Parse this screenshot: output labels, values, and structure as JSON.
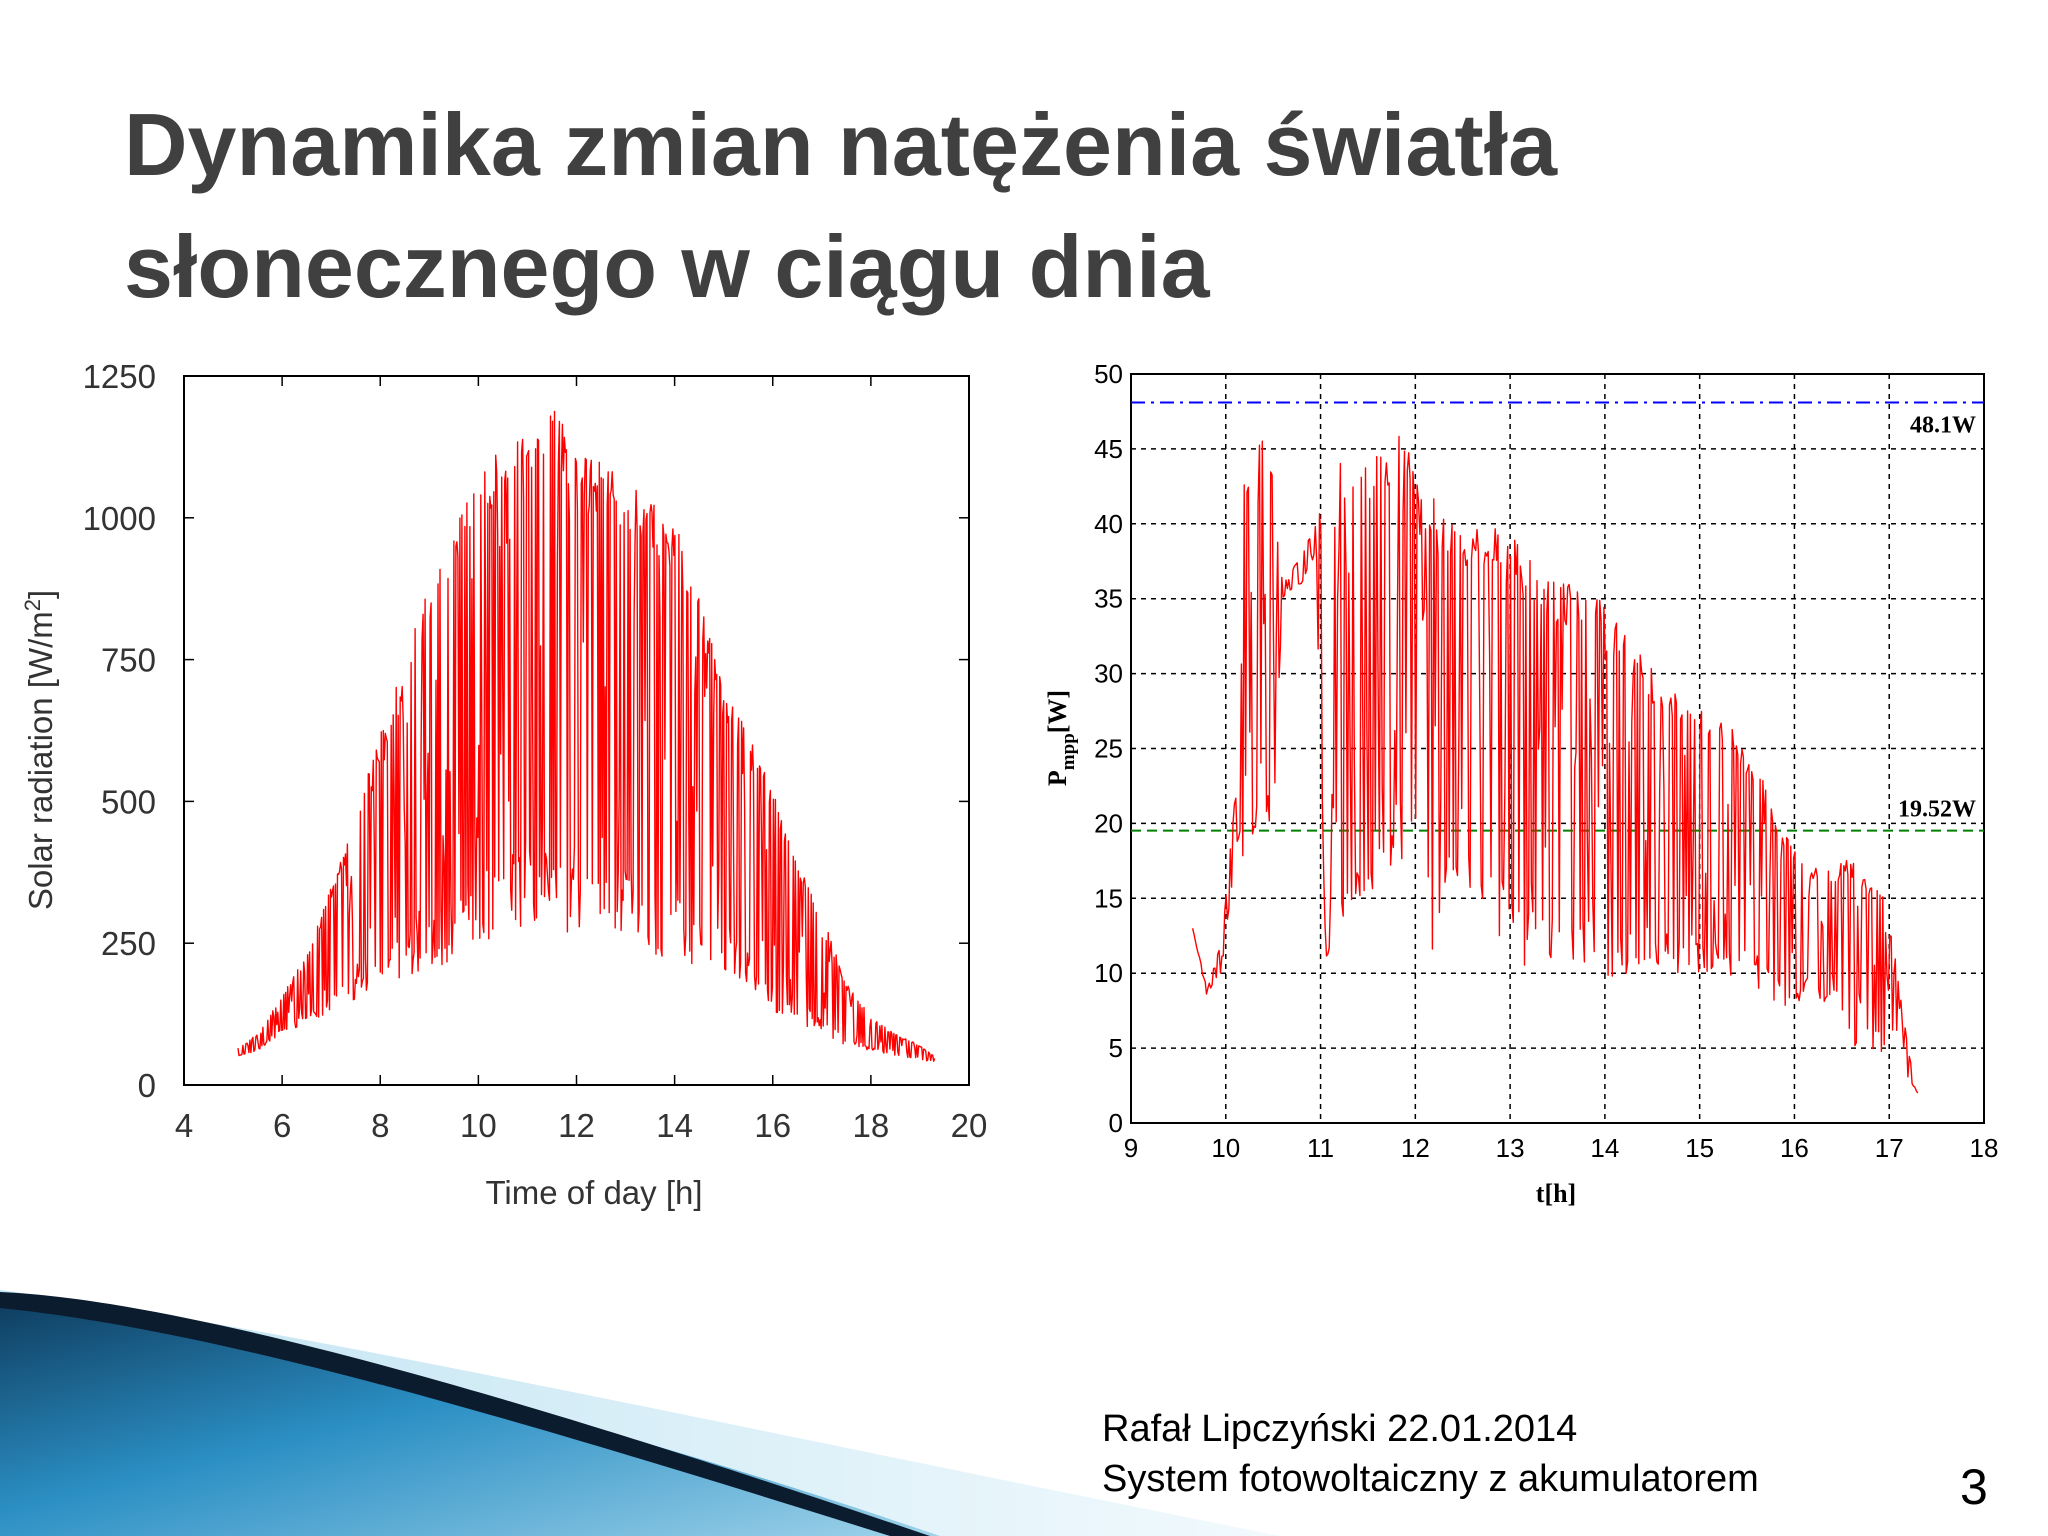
{
  "slide": {
    "title_line1": "Dynamika zmian natężenia światła",
    "title_line2": "słonecznego w ciągu dnia",
    "footer_line1": "Rafał Lipczyński 22.01.2014",
    "footer_line2": "System fotowoltaiczny z akumulatorem",
    "page_number": "3"
  },
  "colors": {
    "title": "#404040",
    "series": "#ff0000",
    "max_line": "#0000ff",
    "avg_line": "#008000",
    "swoosh_dark": "#0b1c2e",
    "swoosh_blue": "#2b8fc4"
  },
  "chart_data": [
    {
      "type": "line",
      "xlabel": "Time of day [h]",
      "ylabel_prefix": "Solar radiation [W/m",
      "ylabel_sup": "2",
      "ylabel_suffix": "]",
      "xlim": [
        4,
        20
      ],
      "ylim": [
        0,
        1250
      ],
      "xticks": [
        4,
        6,
        8,
        10,
        12,
        14,
        16,
        18,
        20
      ],
      "yticks": [
        0,
        250,
        500,
        750,
        1000,
        1250
      ],
      "grid": false,
      "series": [
        {
          "x": [
            5.1,
            5.5,
            6.0,
            6.5,
            7.0,
            7.5,
            8.0,
            8.5,
            9.0,
            9.5,
            10.0,
            10.5,
            11.0,
            11.5,
            12.0,
            12.5,
            13.0,
            13.5,
            14.0,
            14.5,
            15.0,
            15.5,
            16.0,
            16.5,
            17.0,
            17.5,
            18.0,
            18.5,
            19.0,
            19.3
          ],
          "upper": [
            65,
            90,
            160,
            230,
            350,
            480,
            620,
            750,
            880,
            980,
            1080,
            1150,
            1180,
            1200,
            1150,
            1100,
            1080,
            1030,
            1000,
            860,
            700,
            620,
            520,
            400,
            300,
            180,
            120,
            90,
            70,
            50
          ],
          "lower": [
            50,
            60,
            90,
            110,
            130,
            150,
            170,
            190,
            200,
            220,
            250,
            260,
            270,
            280,
            260,
            280,
            270,
            230,
            220,
            210,
            200,
            180,
            130,
            110,
            90,
            70,
            60,
            50,
            45,
            40
          ]
        }
      ]
    },
    {
      "type": "line",
      "xlabel": "t[h]",
      "ylabel_main": "P",
      "ylabel_sub": "mpp",
      "ylabel_unit": "[W]",
      "xlim": [
        9,
        18
      ],
      "ylim": [
        0,
        50
      ],
      "xticks": [
        9,
        10,
        11,
        12,
        13,
        14,
        15,
        16,
        17,
        18
      ],
      "yticks": [
        0,
        5,
        10,
        15,
        20,
        25,
        30,
        35,
        40,
        45,
        50
      ],
      "grid": true,
      "reference_lines": [
        {
          "value": 48.1,
          "label": "48.1W"
        },
        {
          "value": 19.52,
          "label": "19.52W"
        }
      ],
      "series": [
        {
          "x": [
            9.65,
            9.8,
            9.95,
            10.1,
            10.2,
            10.3,
            10.4,
            10.5,
            10.6,
            10.8,
            10.95,
            11.05,
            11.2,
            11.4,
            11.6,
            11.8,
            11.95,
            12.05,
            12.2,
            12.4,
            12.6,
            12.8,
            12.95,
            13.05,
            13.2,
            13.4,
            13.6,
            13.8,
            13.95,
            14.05,
            14.2,
            14.4,
            14.6,
            14.8,
            14.95,
            15.05,
            15.2,
            15.4,
            15.6,
            15.8,
            15.95,
            16.05,
            16.2,
            16.4,
            16.6,
            16.8,
            16.95,
            17.05,
            17.2,
            17.3
          ],
          "upper": [
            13,
            9,
            12,
            22,
            45,
            42,
            48,
            44,
            36,
            38,
            40,
            43,
            44,
            45,
            45,
            46,
            46,
            42,
            42,
            40,
            40,
            40,
            39,
            39,
            38,
            37,
            36,
            36,
            35,
            34,
            33,
            31,
            30,
            29,
            28,
            28,
            27,
            26,
            24,
            21,
            19,
            18,
            17,
            17,
            18,
            16,
            15,
            12,
            5,
            2
          ],
          "lower": [
            13,
            8.5,
            10,
            17,
            18,
            16,
            20,
            18,
            35,
            36,
            38,
            10,
            11,
            14,
            16,
            17,
            18,
            16,
            10,
            15,
            14,
            13,
            12,
            11,
            10,
            10,
            11,
            10,
            10,
            9.5,
            10,
            10,
            10,
            10,
            10,
            9.5,
            9.5,
            9.5,
            9,
            8,
            7.5,
            8,
            9,
            7,
            5,
            4.5,
            4.5,
            6,
            3,
            2
          ]
        }
      ]
    }
  ]
}
